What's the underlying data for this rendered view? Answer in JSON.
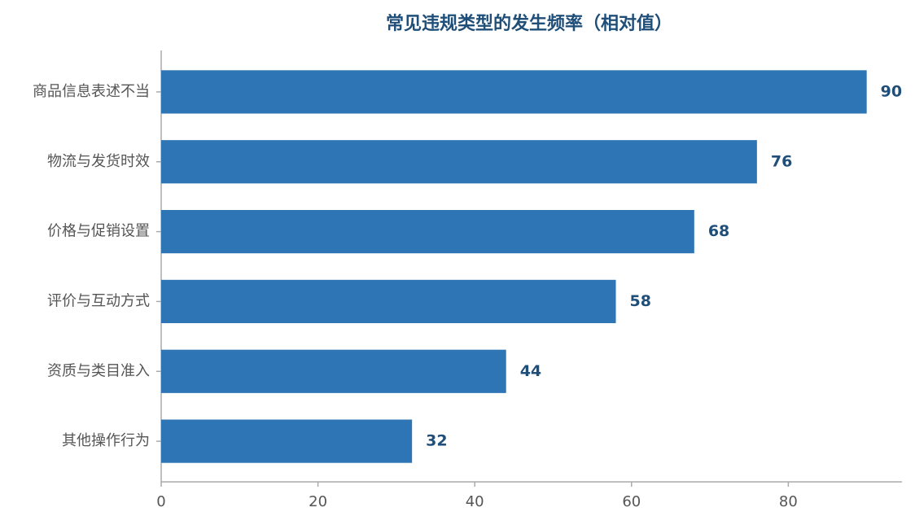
{
  "chart_data": {
    "type": "bar",
    "orientation": "horizontal",
    "title": "常见违规类型的发生频率（相对值）",
    "categories": [
      "商品信息表述不当",
      "物流与发货时效",
      "价格与促销设置",
      "评价与互动方式",
      "资质与类目准入",
      "其他操作行为"
    ],
    "values": [
      90,
      76,
      68,
      58,
      44,
      32
    ],
    "color": "#2e75b6",
    "xlim": [
      0,
      94.5
    ],
    "xticks": [
      0,
      20,
      40,
      60,
      80
    ],
    "grid": false
  }
}
